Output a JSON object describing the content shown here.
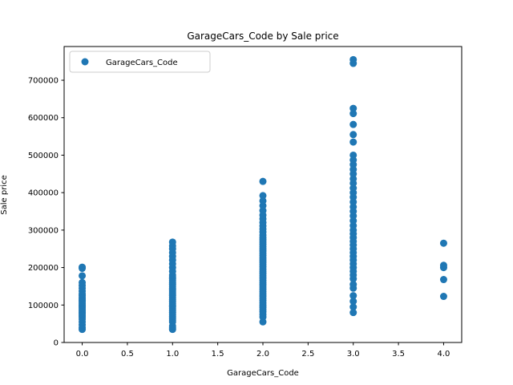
{
  "chart_data": {
    "type": "scatter",
    "title": "GarageCars_Code by Sale price",
    "xlabel": "GarageCars_Code",
    "ylabel": "Sale price",
    "xlim": [
      -0.2,
      4.2
    ],
    "ylim": [
      0,
      790000
    ],
    "xticks": [
      0.0,
      0.5,
      1.0,
      1.5,
      2.0,
      2.5,
      3.0,
      3.5,
      4.0
    ],
    "xtick_labels": [
      "0.0",
      "0.5",
      "1.0",
      "1.5",
      "2.0",
      "2.5",
      "3.0",
      "3.5",
      "4.0"
    ],
    "yticks": [
      0,
      100000,
      200000,
      300000,
      400000,
      500000,
      600000,
      700000
    ],
    "ytick_labels": [
      "0",
      "100000",
      "200000",
      "300000",
      "400000",
      "500000",
      "600000",
      "700000"
    ],
    "grid": false,
    "legend_position": "top-left",
    "marker_color": "#1f77b4",
    "series": [
      {
        "name": "GarageCars_Code",
        "points": [
          [
            0,
            35000
          ],
          [
            0,
            40000
          ],
          [
            0,
            47000
          ],
          [
            0,
            55000
          ],
          [
            0,
            62000
          ],
          [
            0,
            68000
          ],
          [
            0,
            72000
          ],
          [
            0,
            76000
          ],
          [
            0,
            80000
          ],
          [
            0,
            84000
          ],
          [
            0,
            88000
          ],
          [
            0,
            92000
          ],
          [
            0,
            96000
          ],
          [
            0,
            100000
          ],
          [
            0,
            104000
          ],
          [
            0,
            108000
          ],
          [
            0,
            112000
          ],
          [
            0,
            116000
          ],
          [
            0,
            120000
          ],
          [
            0,
            125000
          ],
          [
            0,
            130000
          ],
          [
            0,
            137000
          ],
          [
            0,
            145000
          ],
          [
            0,
            152000
          ],
          [
            0,
            160000
          ],
          [
            0,
            178000
          ],
          [
            0,
            198000
          ],
          [
            0,
            201000
          ],
          [
            1,
            35000
          ],
          [
            1,
            39000
          ],
          [
            1,
            44000
          ],
          [
            1,
            55000
          ],
          [
            1,
            60000
          ],
          [
            1,
            65000
          ],
          [
            1,
            70000
          ],
          [
            1,
            75000
          ],
          [
            1,
            80000
          ],
          [
            1,
            85000
          ],
          [
            1,
            90000
          ],
          [
            1,
            95000
          ],
          [
            1,
            100000
          ],
          [
            1,
            105000
          ],
          [
            1,
            110000
          ],
          [
            1,
            115000
          ],
          [
            1,
            120000
          ],
          [
            1,
            125000
          ],
          [
            1,
            130000
          ],
          [
            1,
            135000
          ],
          [
            1,
            140000
          ],
          [
            1,
            145000
          ],
          [
            1,
            150000
          ],
          [
            1,
            155000
          ],
          [
            1,
            160000
          ],
          [
            1,
            165000
          ],
          [
            1,
            170000
          ],
          [
            1,
            175000
          ],
          [
            1,
            180000
          ],
          [
            1,
            190000
          ],
          [
            1,
            200000
          ],
          [
            1,
            210000
          ],
          [
            1,
            220000
          ],
          [
            1,
            230000
          ],
          [
            1,
            240000
          ],
          [
            1,
            250000
          ],
          [
            1,
            258000
          ],
          [
            1,
            268000
          ],
          [
            2,
            55000
          ],
          [
            2,
            68000
          ],
          [
            2,
            75000
          ],
          [
            2,
            82000
          ],
          [
            2,
            88000
          ],
          [
            2,
            94000
          ],
          [
            2,
            100000
          ],
          [
            2,
            106000
          ],
          [
            2,
            112000
          ],
          [
            2,
            118000
          ],
          [
            2,
            124000
          ],
          [
            2,
            130000
          ],
          [
            2,
            136000
          ],
          [
            2,
            142000
          ],
          [
            2,
            148000
          ],
          [
            2,
            154000
          ],
          [
            2,
            160000
          ],
          [
            2,
            166000
          ],
          [
            2,
            172000
          ],
          [
            2,
            178000
          ],
          [
            2,
            184000
          ],
          [
            2,
            190000
          ],
          [
            2,
            196000
          ],
          [
            2,
            202000
          ],
          [
            2,
            208000
          ],
          [
            2,
            214000
          ],
          [
            2,
            220000
          ],
          [
            2,
            226000
          ],
          [
            2,
            232000
          ],
          [
            2,
            238000
          ],
          [
            2,
            244000
          ],
          [
            2,
            250000
          ],
          [
            2,
            256000
          ],
          [
            2,
            262000
          ],
          [
            2,
            268000
          ],
          [
            2,
            274000
          ],
          [
            2,
            280000
          ],
          [
            2,
            287000
          ],
          [
            2,
            295000
          ],
          [
            2,
            303000
          ],
          [
            2,
            311000
          ],
          [
            2,
            320000
          ],
          [
            2,
            330000
          ],
          [
            2,
            340000
          ],
          [
            2,
            352000
          ],
          [
            2,
            365000
          ],
          [
            2,
            378000
          ],
          [
            2,
            392000
          ],
          [
            2,
            430000
          ],
          [
            3,
            80000
          ],
          [
            3,
            95000
          ],
          [
            3,
            110000
          ],
          [
            3,
            125000
          ],
          [
            3,
            145000
          ],
          [
            3,
            155000
          ],
          [
            3,
            170000
          ],
          [
            3,
            180000
          ],
          [
            3,
            190000
          ],
          [
            3,
            200000
          ],
          [
            3,
            210000
          ],
          [
            3,
            220000
          ],
          [
            3,
            230000
          ],
          [
            3,
            240000
          ],
          [
            3,
            250000
          ],
          [
            3,
            260000
          ],
          [
            3,
            270000
          ],
          [
            3,
            280000
          ],
          [
            3,
            290000
          ],
          [
            3,
            300000
          ],
          [
            3,
            312000
          ],
          [
            3,
            325000
          ],
          [
            3,
            338000
          ],
          [
            3,
            350000
          ],
          [
            3,
            362000
          ],
          [
            3,
            375000
          ],
          [
            3,
            388000
          ],
          [
            3,
            400000
          ],
          [
            3,
            412000
          ],
          [
            3,
            425000
          ],
          [
            3,
            437000
          ],
          [
            3,
            450000
          ],
          [
            3,
            462000
          ],
          [
            3,
            475000
          ],
          [
            3,
            487000
          ],
          [
            3,
            500000
          ],
          [
            3,
            535000
          ],
          [
            3,
            555000
          ],
          [
            3,
            582000
          ],
          [
            3,
            611000
          ],
          [
            3,
            625000
          ],
          [
            3,
            745000
          ],
          [
            3,
            755000
          ],
          [
            4,
            123000
          ],
          [
            4,
            168000
          ],
          [
            4,
            200000
          ],
          [
            4,
            206000
          ],
          [
            4,
            265000
          ]
        ]
      }
    ]
  }
}
